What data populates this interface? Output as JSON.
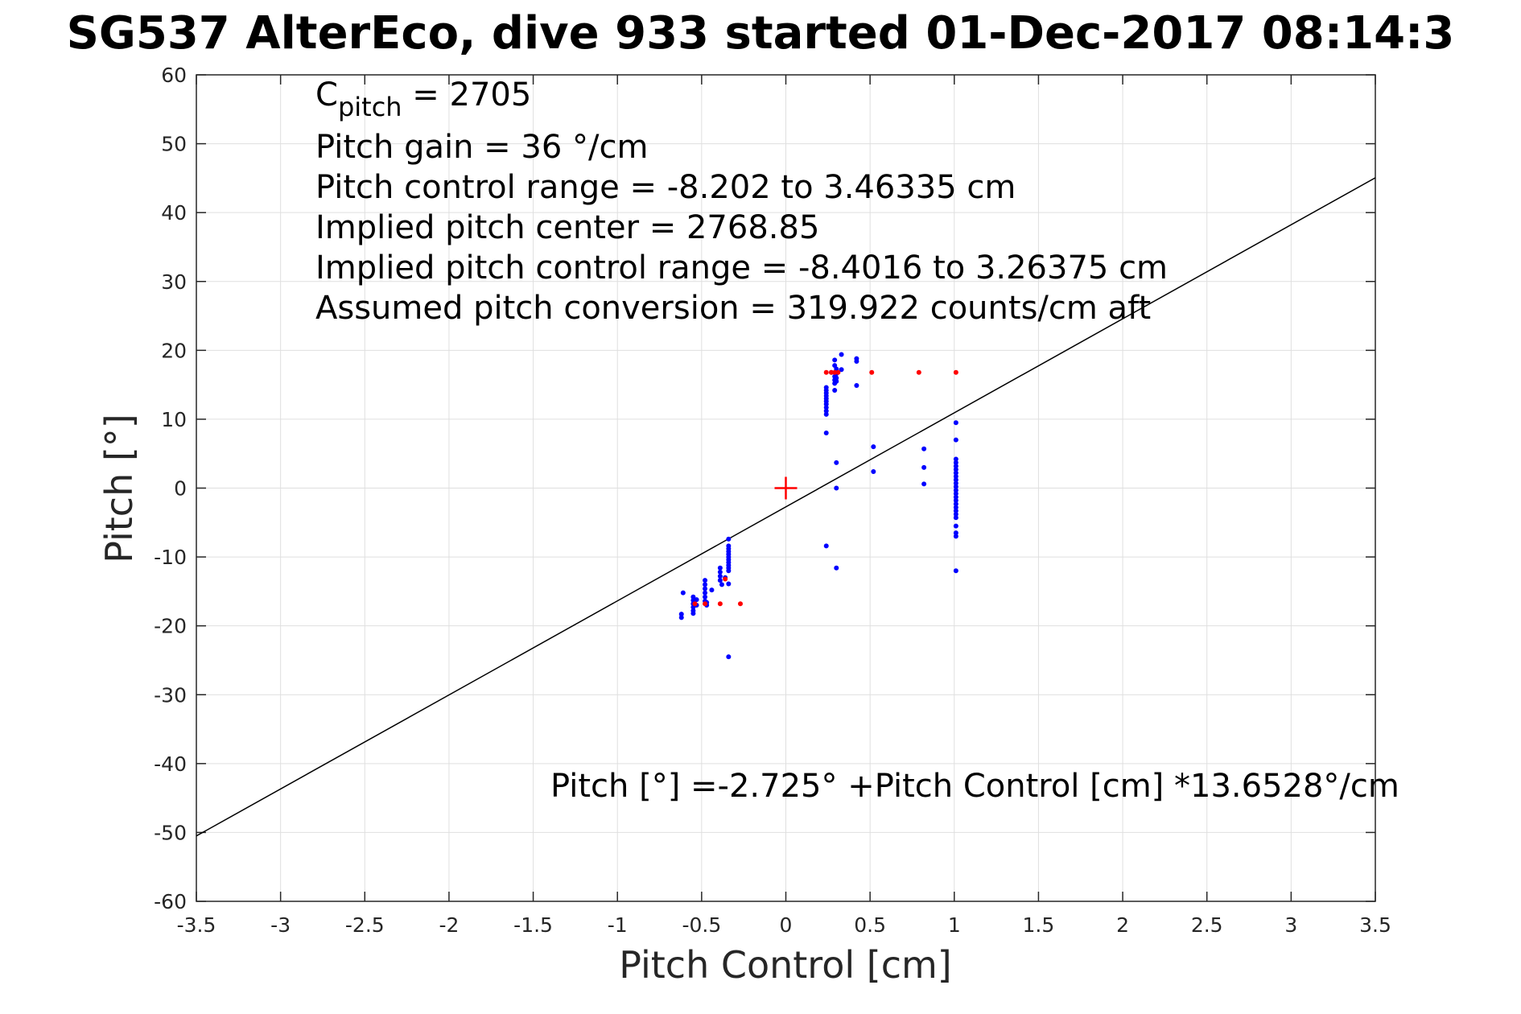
{
  "chart_data": {
    "type": "scatter",
    "title": "SG537 AlterEco, dive 933 started 01-Dec-2017 08:14:3",
    "xlabel": "Pitch Control [cm]",
    "ylabel": "Pitch [°]",
    "xlim": [
      -3.5,
      3.5
    ],
    "ylim": [
      -60,
      60
    ],
    "xticks": [
      -3.5,
      -3,
      -2.5,
      -2,
      -1.5,
      -1,
      -0.5,
      0,
      0.5,
      1,
      1.5,
      2,
      2.5,
      3,
      3.5
    ],
    "yticks": [
      -60,
      -50,
      -40,
      -30,
      -20,
      -10,
      0,
      10,
      20,
      30,
      40,
      50,
      60
    ],
    "xtick_labels": [
      "-3.5",
      "-3",
      "-2.5",
      "-2",
      "-1.5",
      "-1",
      "-0.5",
      "0",
      "0.5",
      "1",
      "1.5",
      "2",
      "2.5",
      "3",
      "3.5"
    ],
    "ytick_labels": [
      "-60",
      "-50",
      "-40",
      "-30",
      "-20",
      "-10",
      "0",
      "10",
      "20",
      "30",
      "40",
      "50",
      "60"
    ],
    "grid": true,
    "annotations": {
      "c_pitch_main": "C",
      "c_pitch_sub": "pitch",
      "c_pitch_value": " = 2705",
      "lines": [
        "Pitch gain = 36 °/cm",
        "Pitch control range = -8.202 to 3.46335 cm",
        "Implied pitch center = 2768.85",
        "Implied pitch control range = -8.4016 to 3.26375 cm",
        "Assumed pitch conversion = 319.922 counts/cm aft"
      ],
      "fit_label": "Pitch [°] =-2.725° +Pitch Control [cm] *13.6528°/cm"
    },
    "fit_line": {
      "intercept": -2.725,
      "slope": 13.6528,
      "color": "#000000"
    },
    "center_marker": {
      "x": 0,
      "y": 0,
      "color": "#ff0000"
    },
    "series": [
      {
        "color": "#0000ff",
        "points": [
          [
            -0.61,
            -15.2
          ],
          [
            -0.62,
            -18.3
          ],
          [
            -0.62,
            -18.8
          ],
          [
            -0.55,
            -15.8
          ],
          [
            -0.55,
            -16.3
          ],
          [
            -0.55,
            -16.8
          ],
          [
            -0.55,
            -17.3
          ],
          [
            -0.55,
            -17.8
          ],
          [
            -0.55,
            -18.2
          ],
          [
            -0.53,
            -16.2
          ],
          [
            -0.53,
            -17.0
          ],
          [
            -0.48,
            -13.4
          ],
          [
            -0.48,
            -14.0
          ],
          [
            -0.48,
            -14.6
          ],
          [
            -0.48,
            -15.2
          ],
          [
            -0.48,
            -15.8
          ],
          [
            -0.48,
            -16.4
          ],
          [
            -0.47,
            -17.0
          ],
          [
            -0.47,
            -16.6
          ],
          [
            -0.44,
            -14.8
          ],
          [
            -0.39,
            -11.6
          ],
          [
            -0.39,
            -12.2
          ],
          [
            -0.39,
            -12.8
          ],
          [
            -0.39,
            -13.4
          ],
          [
            -0.38,
            -14.0
          ],
          [
            -0.36,
            -13.0
          ],
          [
            -0.34,
            -7.4
          ],
          [
            -0.34,
            -8.4
          ],
          [
            -0.34,
            -8.8
          ],
          [
            -0.34,
            -9.2
          ],
          [
            -0.34,
            -9.6
          ],
          [
            -0.34,
            -10.0
          ],
          [
            -0.34,
            -10.4
          ],
          [
            -0.34,
            -10.8
          ],
          [
            -0.34,
            -11.2
          ],
          [
            -0.34,
            -11.6
          ],
          [
            -0.34,
            -12.0
          ],
          [
            -0.34,
            -13.9
          ],
          [
            -0.34,
            -24.5
          ],
          [
            0.24,
            14.6
          ],
          [
            0.24,
            14.2
          ],
          [
            0.24,
            13.8
          ],
          [
            0.24,
            13.4
          ],
          [
            0.24,
            13.0
          ],
          [
            0.24,
            12.6
          ],
          [
            0.24,
            12.2
          ],
          [
            0.24,
            11.7
          ],
          [
            0.24,
            11.2
          ],
          [
            0.24,
            10.7
          ],
          [
            0.24,
            8.0
          ],
          [
            0.24,
            -8.4
          ],
          [
            0.27,
            16.8
          ],
          [
            0.29,
            16.2
          ],
          [
            0.29,
            15.7
          ],
          [
            0.29,
            15.2
          ],
          [
            0.29,
            14.2
          ],
          [
            0.29,
            17.8
          ],
          [
            0.29,
            18.6
          ],
          [
            0.3,
            16.6
          ],
          [
            0.3,
            16.0
          ],
          [
            0.3,
            15.5
          ],
          [
            0.3,
            17.3
          ],
          [
            0.3,
            3.7
          ],
          [
            0.3,
            0.0
          ],
          [
            0.3,
            -11.6
          ],
          [
            0.33,
            19.4
          ],
          [
            0.33,
            17.2
          ],
          [
            0.42,
            18.8
          ],
          [
            0.42,
            18.4
          ],
          [
            0.42,
            14.9
          ],
          [
            0.52,
            6.0
          ],
          [
            0.52,
            2.4
          ],
          [
            0.82,
            5.7
          ],
          [
            0.82,
            3.0
          ],
          [
            0.82,
            0.6
          ],
          [
            1.01,
            9.5
          ],
          [
            1.01,
            7.0
          ],
          [
            1.01,
            4.2
          ],
          [
            1.01,
            3.7
          ],
          [
            1.01,
            3.2
          ],
          [
            1.01,
            2.7
          ],
          [
            1.01,
            2.2
          ],
          [
            1.01,
            1.7
          ],
          [
            1.01,
            1.2
          ],
          [
            1.01,
            0.7
          ],
          [
            1.01,
            0.2
          ],
          [
            1.01,
            -0.3
          ],
          [
            1.01,
            -0.8
          ],
          [
            1.01,
            -1.3
          ],
          [
            1.01,
            -1.8
          ],
          [
            1.01,
            -2.3
          ],
          [
            1.01,
            -2.8
          ],
          [
            1.01,
            -3.3
          ],
          [
            1.01,
            -3.8
          ],
          [
            1.01,
            -4.3
          ],
          [
            1.01,
            -5.5
          ],
          [
            1.01,
            -6.5
          ],
          [
            1.01,
            -7.0
          ],
          [
            1.01,
            -12.0
          ]
        ]
      },
      {
        "color": "#ff0000",
        "points": [
          [
            -0.54,
            -16.8
          ],
          [
            -0.48,
            -16.8
          ],
          [
            -0.39,
            -16.8
          ],
          [
            -0.27,
            -16.8
          ],
          [
            -0.36,
            -13.2
          ],
          [
            0.24,
            16.8
          ],
          [
            0.27,
            16.8
          ],
          [
            0.29,
            16.8
          ],
          [
            0.31,
            16.8
          ],
          [
            0.51,
            16.8
          ],
          [
            0.79,
            16.8
          ],
          [
            1.01,
            16.8
          ]
        ]
      }
    ]
  }
}
